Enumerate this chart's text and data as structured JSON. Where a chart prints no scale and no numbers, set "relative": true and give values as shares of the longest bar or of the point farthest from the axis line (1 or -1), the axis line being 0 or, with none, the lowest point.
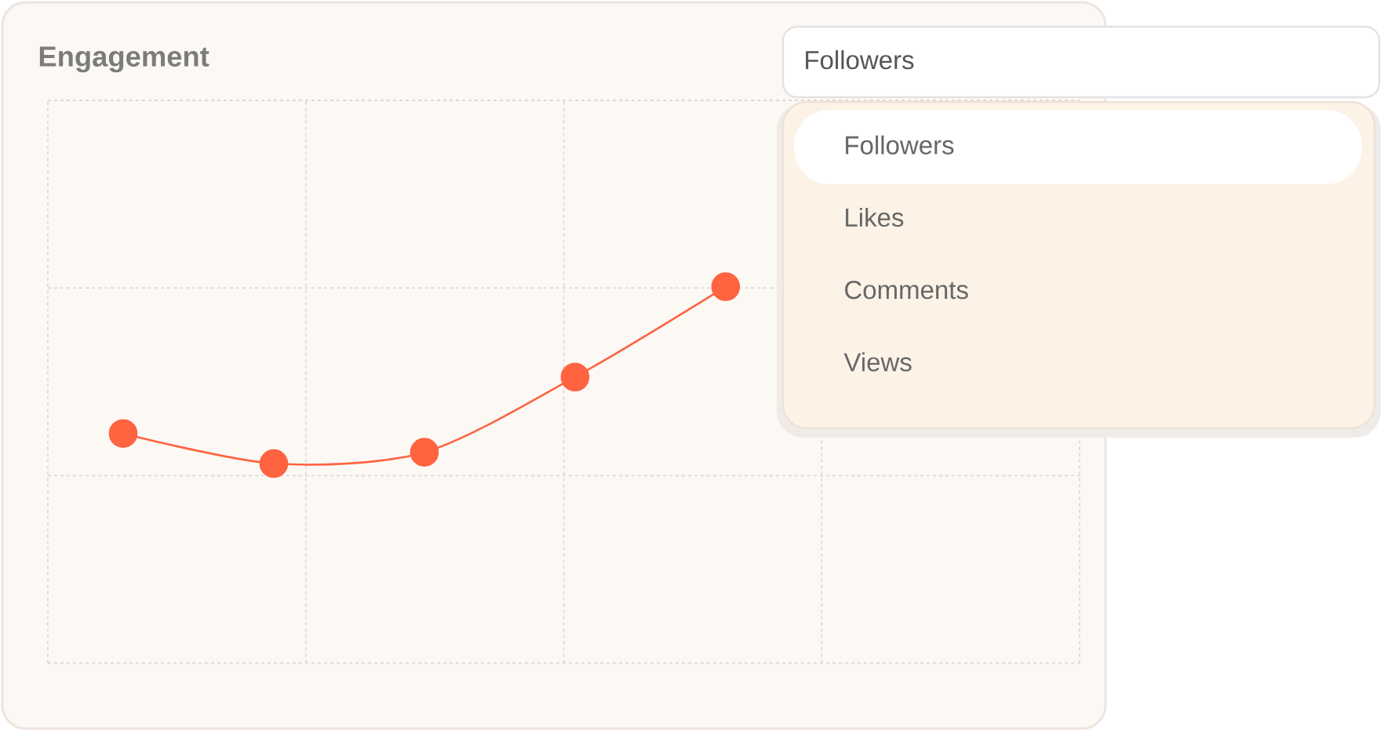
{
  "chart_data": {
    "type": "line",
    "title": "Engagement",
    "categories": [
      null,
      null,
      null,
      null,
      null,
      null,
      null
    ],
    "values": [
      0.61,
      0.53,
      0.56,
      0.76,
      1,
      null,
      null
    ],
    "color": "#ff6340",
    "relative": true,
    "marker": "circle",
    "grid": true,
    "annotations": [
      "Followers",
      "Followers",
      "Likes",
      "Comments",
      "Views"
    ]
  }
}
